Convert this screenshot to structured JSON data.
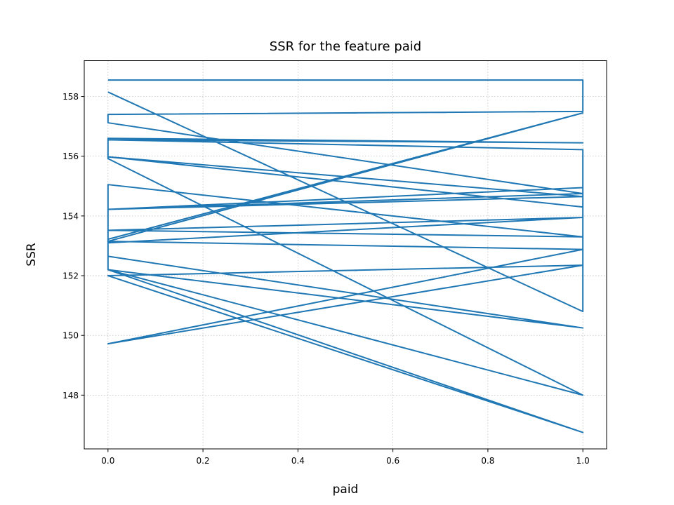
{
  "chart_data": {
    "type": "line",
    "title": "SSR for the feature paid",
    "xlabel": "paid",
    "ylabel": "SSR",
    "xlim": [
      -0.05,
      1.05
    ],
    "ylim": [
      146.2,
      159.2
    ],
    "xticks": [
      0.0,
      0.2,
      0.4,
      0.6,
      0.8,
      1.0
    ],
    "xtick_labels": [
      "0.0",
      "0.2",
      "0.4",
      "0.6",
      "0.8",
      "1.0"
    ],
    "yticks": [
      148,
      150,
      152,
      154,
      156,
      158
    ],
    "ytick_labels": [
      "148",
      "150",
      "152",
      "154",
      "156",
      "158"
    ],
    "grid": true,
    "color": "#1f77b4",
    "series": [
      {
        "x": [
          0,
          1,
          1,
          0,
          0,
          1,
          0,
          0,
          1,
          0,
          1,
          0,
          0,
          1,
          0,
          1,
          0,
          0,
          1,
          0,
          1,
          0,
          0,
          1,
          1,
          0,
          1,
          0,
          0,
          1,
          0,
          1,
          0,
          0,
          1,
          0,
          1,
          1,
          0
        ],
        "y": [
          158.55,
          158.55,
          157.5,
          157.4,
          157.12,
          154.75,
          154.22,
          152.2,
          146.75,
          152.0,
          152.35,
          149.72,
          149.72,
          152.88,
          153.15,
          157.45,
          153.22,
          153.1,
          153.95,
          153.52,
          153.3,
          155.05,
          154.22,
          154.95,
          154.3,
          155.98,
          154.65,
          154.22,
          152.65,
          150.25,
          152.2,
          148.0,
          155.92,
          156.6,
          156.45,
          156.55,
          156.22,
          150.8,
          158.15
        ]
      }
    ]
  }
}
